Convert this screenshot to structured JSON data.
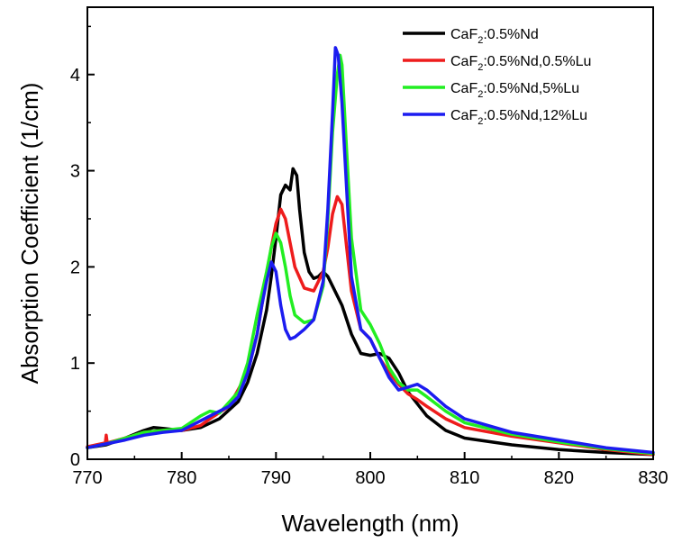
{
  "chart_data": {
    "type": "line",
    "xlabel": "Wavelength (nm)",
    "ylabel": "Absorption Coefficient (1/cm)",
    "xlim": [
      770,
      830
    ],
    "ylim": [
      0,
      4.7
    ],
    "xticks": [
      "770",
      "780",
      "790",
      "800",
      "810",
      "820",
      "830"
    ],
    "yticks": [
      "0",
      "1",
      "2",
      "3",
      "4"
    ],
    "legend_position": "top-right",
    "series": [
      {
        "name": "CaF2:0.5%Nd",
        "legend": {
          "pre": "CaF",
          "sub": "2",
          "post": ":0.5%Nd"
        },
        "color": "#000000",
        "x": [
          770,
          772,
          774,
          776,
          777,
          778,
          780,
          782,
          784,
          786,
          787,
          788,
          789,
          789.5,
          790,
          790.5,
          791,
          791.5,
          791.8,
          792.2,
          792.5,
          793,
          793.5,
          794,
          794.5,
          795,
          795.5,
          796,
          797,
          798,
          799,
          800,
          801,
          802,
          803,
          804,
          806,
          808,
          810,
          815,
          820,
          825,
          830
        ],
        "y": [
          0.12,
          0.15,
          0.22,
          0.3,
          0.33,
          0.32,
          0.3,
          0.33,
          0.42,
          0.6,
          0.8,
          1.1,
          1.55,
          1.9,
          2.3,
          2.75,
          2.85,
          2.8,
          3.02,
          2.95,
          2.6,
          2.15,
          1.95,
          1.88,
          1.9,
          1.95,
          1.9,
          1.8,
          1.6,
          1.3,
          1.1,
          1.08,
          1.1,
          1.05,
          0.9,
          0.7,
          0.45,
          0.3,
          0.22,
          0.15,
          0.1,
          0.07,
          0.05
        ]
      },
      {
        "name": "CaF2:0.5%Nd,0.5%Lu",
        "legend": {
          "pre": "CaF",
          "sub": "2",
          "post": ":0.5%Nd,0.5%Lu"
        },
        "color": "#ee1c1c",
        "x": [
          770,
          771.9,
          772,
          772.1,
          774,
          776,
          778,
          780,
          782,
          783,
          785,
          787,
          788,
          789,
          789.5,
          790,
          790.5,
          791,
          791.5,
          792,
          793,
          794,
          795,
          795.5,
          796,
          796.5,
          797,
          797.5,
          798,
          799,
          800,
          801,
          802,
          803,
          804,
          805,
          806,
          808,
          810,
          815,
          820,
          825,
          830
        ],
        "y": [
          0.13,
          0.17,
          0.25,
          0.17,
          0.22,
          0.28,
          0.3,
          0.3,
          0.35,
          0.42,
          0.55,
          0.9,
          1.3,
          1.9,
          2.2,
          2.45,
          2.6,
          2.5,
          2.25,
          2.0,
          1.78,
          1.75,
          1.95,
          2.2,
          2.55,
          2.73,
          2.65,
          2.2,
          1.75,
          1.35,
          1.25,
          1.05,
          0.9,
          0.78,
          0.68,
          0.62,
          0.55,
          0.42,
          0.33,
          0.24,
          0.17,
          0.1,
          0.05
        ]
      },
      {
        "name": "CaF2:0.5%Nd,5%Lu",
        "legend": {
          "pre": "CaF",
          "sub": "2",
          "post": ":0.5%Nd,5%Lu"
        },
        "color": "#22ee22",
        "x": [
          770,
          772,
          774,
          776,
          778,
          780,
          782,
          783,
          784,
          786,
          787,
          788,
          789,
          789.5,
          790,
          790.5,
          791,
          791.5,
          792,
          793,
          794,
          795,
          795.5,
          796,
          796.5,
          796.8,
          797,
          797.5,
          798,
          799,
          800,
          801,
          802,
          803,
          804,
          805,
          806,
          808,
          810,
          815,
          820,
          825,
          830
        ],
        "y": [
          0.12,
          0.16,
          0.22,
          0.28,
          0.3,
          0.32,
          0.45,
          0.5,
          0.48,
          0.7,
          1.0,
          1.5,
          1.95,
          2.2,
          2.35,
          2.25,
          2.0,
          1.7,
          1.5,
          1.42,
          1.45,
          1.8,
          2.5,
          3.4,
          4.0,
          4.2,
          4.1,
          3.2,
          2.3,
          1.55,
          1.4,
          1.2,
          0.95,
          0.8,
          0.72,
          0.72,
          0.65,
          0.5,
          0.38,
          0.26,
          0.18,
          0.11,
          0.06
        ]
      },
      {
        "name": "CaF2:0.5%Nd,12%Lu",
        "legend": {
          "pre": "CaF",
          "sub": "2",
          "post": ":0.5%Nd,12%Lu"
        },
        "color": "#1c1cf0",
        "x": [
          770,
          772,
          774,
          776,
          778,
          780,
          782,
          783,
          785,
          786,
          787,
          788,
          788.5,
          789,
          789.5,
          790,
          790.5,
          791,
          791.5,
          792,
          793,
          794,
          795,
          795.5,
          796,
          796.3,
          796.6,
          797,
          797.5,
          798,
          799,
          800,
          801,
          802,
          803,
          804,
          805,
          806,
          808,
          810,
          815,
          820,
          825,
          830
        ],
        "y": [
          0.12,
          0.16,
          0.2,
          0.25,
          0.28,
          0.3,
          0.4,
          0.45,
          0.55,
          0.65,
          0.9,
          1.3,
          1.6,
          1.85,
          2.05,
          1.95,
          1.6,
          1.35,
          1.25,
          1.27,
          1.35,
          1.45,
          1.85,
          2.6,
          3.6,
          4.28,
          4.2,
          3.7,
          2.8,
          1.9,
          1.35,
          1.25,
          1.05,
          0.85,
          0.72,
          0.75,
          0.78,
          0.72,
          0.55,
          0.42,
          0.28,
          0.2,
          0.12,
          0.07
        ]
      }
    ]
  }
}
